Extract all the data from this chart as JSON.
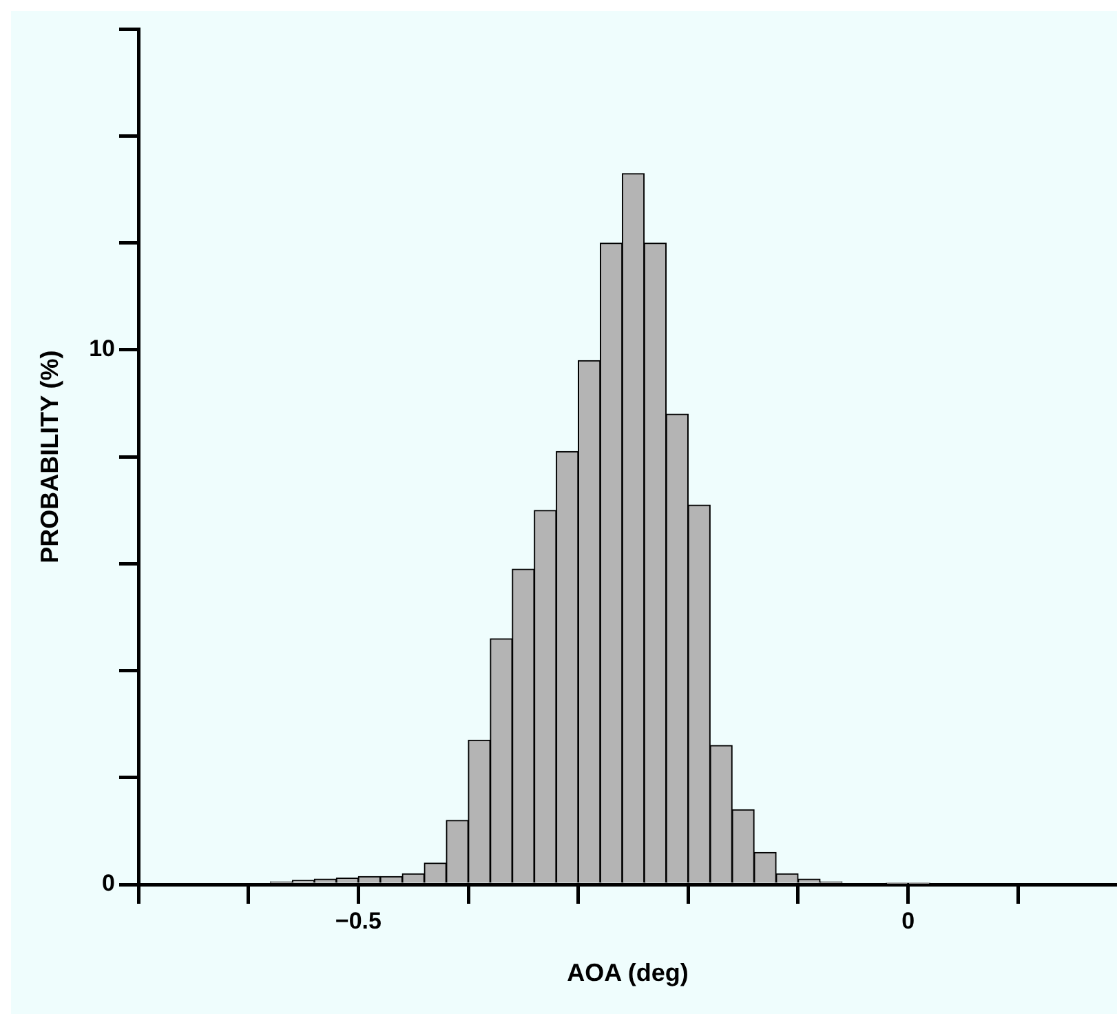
{
  "chart_data": {
    "type": "histogram",
    "xlabel": "AOA (deg)",
    "ylabel": "PROBABILITY (%)",
    "bins": [
      -0.62,
      -0.6,
      -0.58,
      -0.56,
      -0.54,
      -0.52,
      -0.5,
      -0.48,
      -0.46,
      -0.44,
      -0.42,
      -0.4,
      -0.38,
      -0.36,
      -0.34,
      -0.32,
      -0.3,
      -0.28,
      -0.26,
      -0.24,
      -0.22,
      -0.2,
      -0.18,
      -0.16,
      -0.14,
      -0.12,
      -0.1,
      -0.08,
      -0.06,
      -0.04,
      -0.02,
      0,
      0.02
    ],
    "values": [
      null,
      null,
      0.05,
      0.08,
      0.1,
      0.12,
      0.15,
      0.15,
      0.2,
      0.4,
      1.2,
      2.7,
      4.6,
      5.9,
      7.0,
      8.1,
      9.8,
      12.0,
      13.3,
      12.0,
      8.8,
      7.1,
      2.6,
      1.4,
      0.6,
      0.2,
      0.1,
      0.05,
      null,
      null,
      0.02,
      0.02
    ],
    "color": "#b4b4b4",
    "xlim": [
      -0.7,
      0.19
    ],
    "xticks": [
      {
        "value": -0.7,
        "label": null
      },
      {
        "value": -0.6,
        "label": null
      },
      {
        "value": -0.5,
        "label": "−0.5"
      },
      {
        "value": -0.4,
        "label": null
      },
      {
        "value": -0.3,
        "label": null
      },
      {
        "value": -0.2,
        "label": null
      },
      {
        "value": -0.1,
        "label": null
      },
      0,
      {
        "value": 0.1,
        "label": null
      }
    ],
    "ylim": [
      0,
      16
    ],
    "yticks": [
      0,
      {
        "value": 2,
        "label": null
      },
      {
        "value": 4,
        "label": null
      },
      {
        "value": 6,
        "label": null
      },
      {
        "value": 8,
        "label": null
      },
      10,
      {
        "value": 12,
        "label": null
      },
      {
        "value": 14,
        "label": null
      },
      {
        "value": 16,
        "label": null
      }
    ],
    "grid": false
  }
}
